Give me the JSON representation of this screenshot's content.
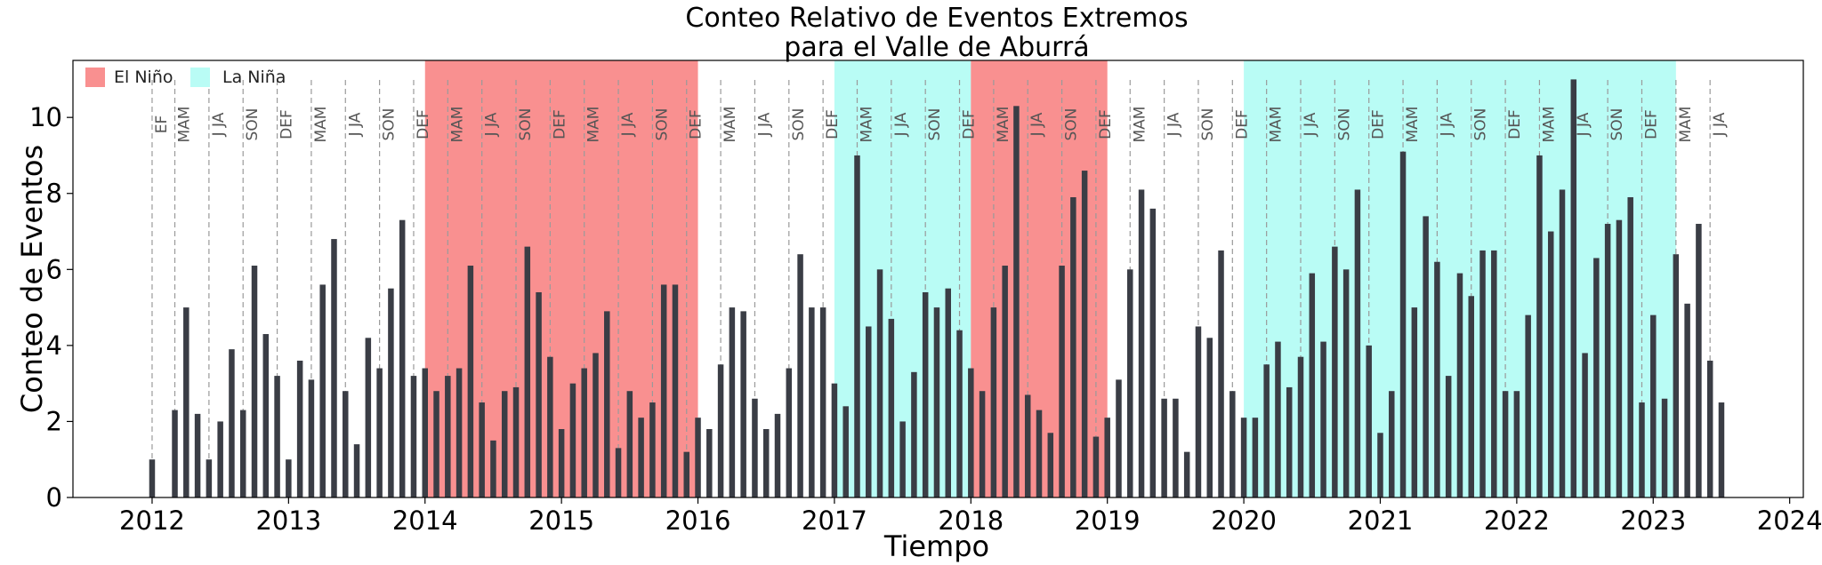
{
  "chart_data": {
    "type": "bar",
    "title": "Conteo Relativo de Eventos Extremos",
    "subtitle": "para el Valle de Aburrá",
    "xlabel": "Tiempo",
    "ylabel": "Conteo de Eventos",
    "xlim": [
      2011.42,
      2024.1
    ],
    "ylim": [
      0,
      11.5
    ],
    "x_ticks": [
      "2012",
      "2013",
      "2014",
      "2015",
      "2016",
      "2017",
      "2018",
      "2019",
      "2020",
      "2021",
      "2022",
      "2023",
      "2024"
    ],
    "y_ticks": [
      "0",
      "2",
      "4",
      "6",
      "8",
      "10"
    ],
    "bar_color": "#3a3d45",
    "legend": {
      "placement": "top-left",
      "items": [
        {
          "label": "El Niño",
          "color": "#f99090"
        },
        {
          "label": "La Niña",
          "color": "#b9fcf5"
        }
      ]
    },
    "shaded_periods": [
      {
        "type": "El Niño",
        "start": "2014-01",
        "end": "2016-01"
      },
      {
        "type": "La Niña",
        "start": "2017-01",
        "end": "2018-01"
      },
      {
        "type": "El Niño",
        "start": "2018-01",
        "end": "2019-01"
      },
      {
        "type": "La Niña",
        "start": "2020-01",
        "end": "2023-03"
      }
    ],
    "seasons": [
      {
        "label": "EF",
        "date": "2012-01"
      },
      {
        "label": "MAM",
        "date": "2012-03"
      },
      {
        "label": "J JA",
        "date": "2012-06"
      },
      {
        "label": "SON",
        "date": "2012-09"
      },
      {
        "label": "DEF",
        "date": "2012-12"
      },
      {
        "label": "MAM",
        "date": "2013-03"
      },
      {
        "label": "J JA",
        "date": "2013-06"
      },
      {
        "label": "SON",
        "date": "2013-09"
      },
      {
        "label": "DEF",
        "date": "2013-12"
      },
      {
        "label": "MAM",
        "date": "2014-03"
      },
      {
        "label": "J JA",
        "date": "2014-06"
      },
      {
        "label": "SON",
        "date": "2014-09"
      },
      {
        "label": "DEF",
        "date": "2014-12"
      },
      {
        "label": "MAM",
        "date": "2015-03"
      },
      {
        "label": "J JA",
        "date": "2015-06"
      },
      {
        "label": "SON",
        "date": "2015-09"
      },
      {
        "label": "DEF",
        "date": "2015-12"
      },
      {
        "label": "MAM",
        "date": "2016-03"
      },
      {
        "label": "J JA",
        "date": "2016-06"
      },
      {
        "label": "SON",
        "date": "2016-09"
      },
      {
        "label": "DEF",
        "date": "2016-12"
      },
      {
        "label": "MAM",
        "date": "2017-03"
      },
      {
        "label": "J JA",
        "date": "2017-06"
      },
      {
        "label": "SON",
        "date": "2017-09"
      },
      {
        "label": "DEF",
        "date": "2017-12"
      },
      {
        "label": "MAM",
        "date": "2018-03"
      },
      {
        "label": "J JA",
        "date": "2018-06"
      },
      {
        "label": "SON",
        "date": "2018-09"
      },
      {
        "label": "DEF",
        "date": "2018-12"
      },
      {
        "label": "MAM",
        "date": "2019-03"
      },
      {
        "label": "J JA",
        "date": "2019-06"
      },
      {
        "label": "SON",
        "date": "2019-09"
      },
      {
        "label": "DEF",
        "date": "2019-12"
      },
      {
        "label": "MAM",
        "date": "2020-03"
      },
      {
        "label": "J JA",
        "date": "2020-06"
      },
      {
        "label": "SON",
        "date": "2020-09"
      },
      {
        "label": "DEF",
        "date": "2020-12"
      },
      {
        "label": "MAM",
        "date": "2021-03"
      },
      {
        "label": "J JA",
        "date": "2021-06"
      },
      {
        "label": "SON",
        "date": "2021-09"
      },
      {
        "label": "DEF",
        "date": "2021-12"
      },
      {
        "label": "MAM",
        "date": "2022-03"
      },
      {
        "label": "J JA",
        "date": "2022-06"
      },
      {
        "label": "SON",
        "date": "2022-09"
      },
      {
        "label": "DEF",
        "date": "2022-12"
      },
      {
        "label": "MAM",
        "date": "2023-03"
      },
      {
        "label": "J JA",
        "date": "2023-06"
      }
    ],
    "series": [
      {
        "x": [
          "2012-01",
          "2012-03",
          "2012-04",
          "2012-05",
          "2012-06",
          "2012-07",
          "2012-08",
          "2012-09",
          "2012-10",
          "2012-11",
          "2012-12",
          "2013-01",
          "2013-02",
          "2013-03",
          "2013-04",
          "2013-05",
          "2013-06",
          "2013-07",
          "2013-08",
          "2013-09",
          "2013-10",
          "2013-11",
          "2013-12",
          "2014-01",
          "2014-02",
          "2014-03",
          "2014-04",
          "2014-05",
          "2014-06",
          "2014-07",
          "2014-08",
          "2014-09",
          "2014-10",
          "2014-11",
          "2014-12",
          "2015-01",
          "2015-02",
          "2015-03",
          "2015-04",
          "2015-05",
          "2015-06",
          "2015-07",
          "2015-08",
          "2015-09",
          "2015-10",
          "2015-11",
          "2015-12",
          "2016-01",
          "2016-02",
          "2016-03",
          "2016-04",
          "2016-05",
          "2016-06",
          "2016-07",
          "2016-08",
          "2016-09",
          "2016-10",
          "2016-11",
          "2016-12",
          "2017-01",
          "2017-02",
          "2017-03",
          "2017-04",
          "2017-05",
          "2017-06",
          "2017-07",
          "2017-08",
          "2017-09",
          "2017-10",
          "2017-11",
          "2017-12",
          "2018-01",
          "2018-02",
          "2018-03",
          "2018-04",
          "2018-05",
          "2018-06",
          "2018-07",
          "2018-08",
          "2018-09",
          "2018-10",
          "2018-11",
          "2018-12",
          "2019-01",
          "2019-02",
          "2019-03",
          "2019-04",
          "2019-05",
          "2019-06",
          "2019-07",
          "2019-08",
          "2019-09",
          "2019-10",
          "2019-11",
          "2019-12",
          "2020-01",
          "2020-02",
          "2020-03",
          "2020-04",
          "2020-05",
          "2020-06",
          "2020-07",
          "2020-08",
          "2020-09",
          "2020-10",
          "2020-11",
          "2020-12",
          "2021-01",
          "2021-02",
          "2021-03",
          "2021-04",
          "2021-05",
          "2021-06",
          "2021-07",
          "2021-08",
          "2021-09",
          "2021-10",
          "2021-11",
          "2021-12",
          "2022-01",
          "2022-02",
          "2022-03",
          "2022-04",
          "2022-05",
          "2022-06",
          "2022-07",
          "2022-08",
          "2022-09",
          "2022-10",
          "2022-11",
          "2022-12",
          "2023-01",
          "2023-02",
          "2023-03",
          "2023-04",
          "2023-05",
          "2023-06",
          "2023-07"
        ],
        "values": [
          1.0,
          2.3,
          5.0,
          2.2,
          1.0,
          2.0,
          3.9,
          2.3,
          6.1,
          4.3,
          3.2,
          1.0,
          3.6,
          3.1,
          5.6,
          6.8,
          2.8,
          1.4,
          4.2,
          3.4,
          5.5,
          7.3,
          3.2,
          3.4,
          2.8,
          3.2,
          3.4,
          6.1,
          2.5,
          1.5,
          2.8,
          2.9,
          6.6,
          5.4,
          3.7,
          1.8,
          3.0,
          3.4,
          3.8,
          4.9,
          1.3,
          2.8,
          2.1,
          2.5,
          5.6,
          5.6,
          1.2,
          2.1,
          1.8,
          3.5,
          5.0,
          4.9,
          2.6,
          1.8,
          2.2,
          3.4,
          6.4,
          5.0,
          5.0,
          3.0,
          2.4,
          9.0,
          4.5,
          6.0,
          4.7,
          2.0,
          3.3,
          5.4,
          5.0,
          5.5,
          4.4,
          3.4,
          2.8,
          5.0,
          6.1,
          10.3,
          2.7,
          2.3,
          1.7,
          6.1,
          7.9,
          8.6,
          1.6,
          2.1,
          3.1,
          6.0,
          8.1,
          7.6,
          2.6,
          2.6,
          1.2,
          4.5,
          4.2,
          6.5,
          2.8,
          2.1,
          2.1,
          3.5,
          4.1,
          2.9,
          3.7,
          5.9,
          4.1,
          6.6,
          6.0,
          8.1,
          4.0,
          1.7,
          2.8,
          9.1,
          5.0,
          7.4,
          6.2,
          3.2,
          5.9,
          5.3,
          6.5,
          6.5,
          2.8,
          2.8,
          4.8,
          9.0,
          7.0,
          8.1,
          11.0,
          3.8,
          6.3,
          7.2,
          7.3,
          7.9,
          2.5,
          4.8,
          2.6,
          6.4,
          5.1,
          7.2,
          3.6,
          2.5
        ]
      }
    ]
  }
}
